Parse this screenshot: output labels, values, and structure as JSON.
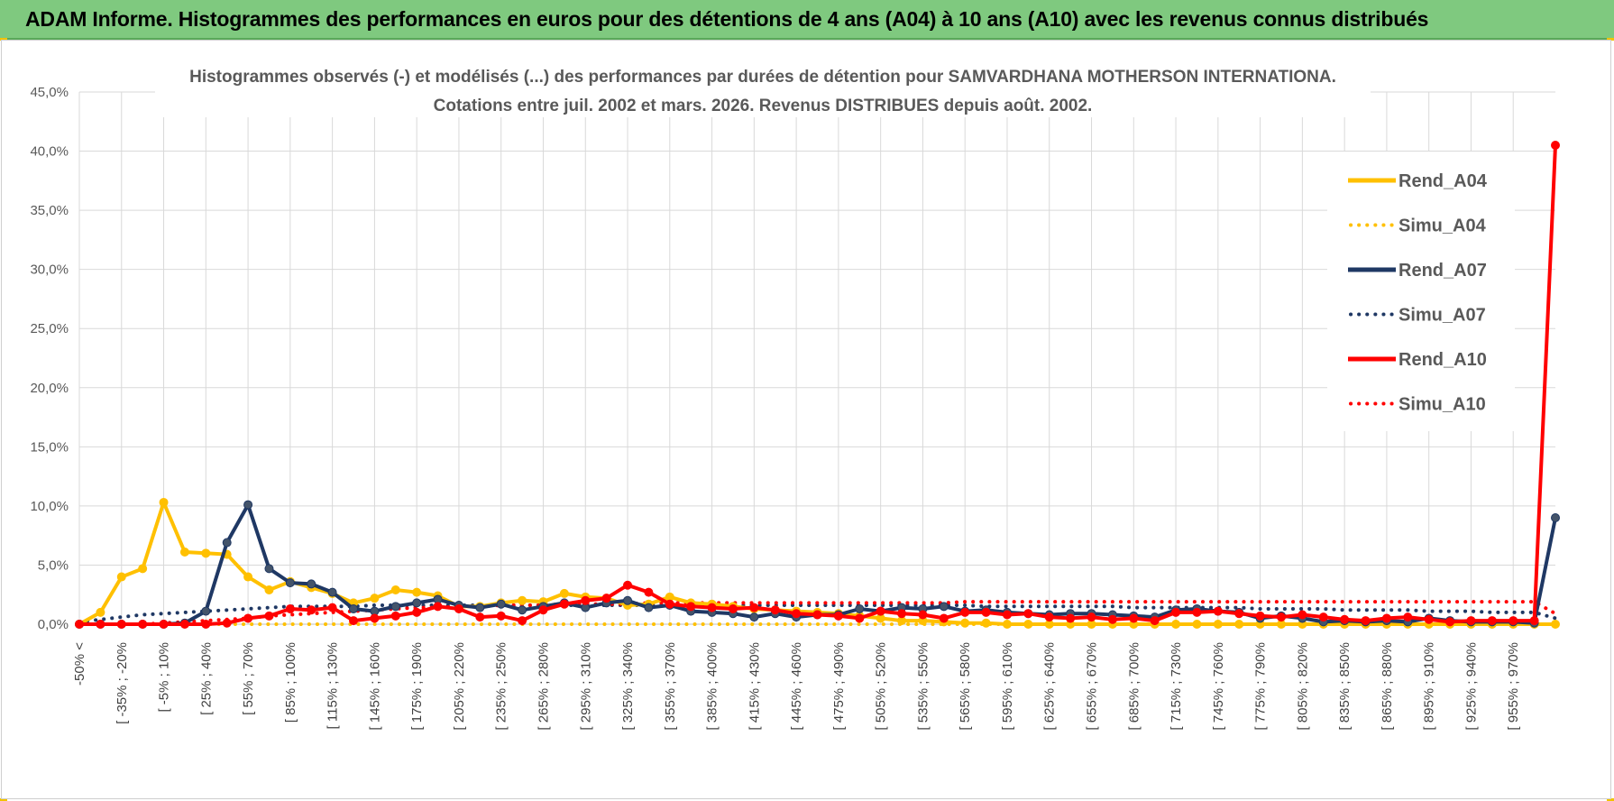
{
  "header": {
    "title": "ADAM Informe. Histogrammes des performances en euros pour des détentions de 4 ans (A04) à 10 ans (A10) avec les revenus connus distribués"
  },
  "chart_data": {
    "type": "line",
    "title_line1": "Histogrammes observés (-) et modélisés (...) des performances par durées de détention pour SAMVARDHANA MOTHERSON INTERNATIONA.",
    "title_line2": "Cotations entre juil. 2002 et mars. 2026. Revenus DISTRIBUES depuis août. 2002.",
    "ylim": [
      0,
      45
    ],
    "yticks": [
      "0,0%",
      "5,0%",
      "10,0%",
      "15,0%",
      "20,0%",
      "25,0%",
      "30,0%",
      "35,0%",
      "40,0%",
      "45,0%"
    ],
    "grid": true,
    "legend_position": "right",
    "x_labels": [
      "-50% <",
      "[ -35% ; -20%",
      "[ -5% ; 10%",
      "[ 25% ; 40%",
      "[ 55% ; 70%",
      "[ 85% ; 100%",
      "[ 115% ; 130%",
      "[ 145% ; 160%",
      "[ 175% ; 190%",
      "[ 205% ; 220%",
      "[ 235% ; 250%",
      "[ 265% ; 280%",
      "[ 295% ; 310%",
      "[ 325% ; 340%",
      "[ 355% ; 370%",
      "[ 385% ; 400%",
      "[ 415% ; 430%",
      "[ 445% ; 460%",
      "[ 475% ; 490%",
      "[ 505% ; 520%",
      "[ 535% ; 550%",
      "[ 565% ; 580%",
      "[ 595% ; 610%",
      "[ 625% ; 640%",
      "[ 655% ; 670%",
      "[ 685% ; 700%",
      "[ 715% ; 730%",
      "[ 745% ; 760%",
      "[ 775% ; 790%",
      "[ 805% ; 820%",
      "[ 835% ; 850%",
      "[ 865% ; 880%",
      "[ 895% ; 910%",
      "[ 925% ; 940%",
      "[ 955% ; 970%"
    ],
    "x_label_indices": [
      0,
      2,
      4,
      6,
      8,
      10,
      12,
      14,
      16,
      18,
      20,
      22,
      24,
      26,
      28,
      30,
      32,
      34,
      36,
      38,
      40,
      42,
      44,
      46,
      48,
      50,
      52,
      54,
      56,
      58,
      60,
      62,
      64,
      66,
      68
    ],
    "n_points": 71,
    "series": [
      {
        "name": "Rend_A04",
        "color": "#ffc000",
        "style": "solid",
        "values": [
          0.0,
          1.0,
          4.0,
          4.7,
          10.3,
          6.1,
          6.0,
          5.9,
          4.0,
          2.9,
          3.6,
          3.1,
          2.6,
          1.8,
          2.2,
          2.9,
          2.7,
          2.4,
          1.5,
          1.5,
          1.8,
          2.0,
          1.9,
          2.6,
          2.3,
          2.2,
          1.6,
          1.7,
          2.3,
          1.8,
          1.7,
          1.5,
          1.3,
          1.2,
          1.1,
          1.0,
          0.9,
          0.7,
          0.5,
          0.3,
          0.3,
          0.2,
          0.1,
          0.1,
          0.0,
          0.0,
          0.0,
          0.0,
          0.0,
          0.0,
          0.0,
          0.0,
          0.0,
          0.0,
          0.0,
          0.0,
          0.0,
          0.0,
          0.0,
          0.0,
          0.0,
          0.0,
          0.0,
          0.0,
          0.0,
          0.0,
          0.0,
          0.0,
          0.0,
          0.0,
          0.0
        ]
      },
      {
        "name": "Simu_A04",
        "color": "#ffc000",
        "style": "dotted",
        "values": [
          0.0,
          0.0,
          0.0,
          0.0,
          0.0,
          0.0,
          0.0,
          0.0,
          0.0,
          0.0,
          0.0,
          0.0,
          0.0,
          0.0,
          0.0,
          0.0,
          0.0,
          0.0,
          0.0,
          0.0,
          0.0,
          0.0,
          0.0,
          0.0,
          0.0,
          0.0,
          0.0,
          0.0,
          0.0,
          0.0,
          0.0,
          0.0,
          0.0,
          0.0,
          0.0,
          0.0,
          0.0,
          0.0,
          0.0,
          0.0,
          0.0,
          0.0,
          0.0,
          0.0,
          0.0,
          0.0,
          0.0,
          0.0,
          0.0,
          0.0,
          0.0,
          0.0,
          0.0,
          0.0,
          0.0,
          0.0,
          0.0,
          0.0,
          0.0,
          0.0,
          0.0,
          0.0,
          0.0,
          0.0,
          0.0,
          0.0,
          0.0,
          0.0,
          0.0,
          0.0,
          0.0
        ]
      },
      {
        "name": "Rend_A07",
        "color": "#1f3864",
        "style": "solid",
        "values": [
          0.0,
          0.0,
          0.0,
          0.0,
          0.0,
          0.1,
          1.1,
          6.9,
          10.1,
          4.7,
          3.5,
          3.4,
          2.7,
          1.3,
          1.1,
          1.5,
          1.8,
          2.1,
          1.6,
          1.4,
          1.7,
          1.2,
          1.5,
          1.8,
          1.4,
          1.8,
          2.0,
          1.4,
          1.6,
          1.1,
          1.0,
          0.9,
          0.6,
          0.9,
          0.6,
          0.8,
          0.8,
          1.3,
          1.1,
          1.4,
          1.3,
          1.5,
          1.1,
          1.2,
          1.0,
          0.9,
          0.8,
          0.9,
          0.9,
          0.8,
          0.7,
          0.6,
          1.2,
          1.3,
          1.1,
          1.0,
          0.5,
          0.7,
          0.5,
          0.2,
          0.3,
          0.2,
          0.3,
          0.2,
          0.5,
          0.3,
          0.2,
          0.2,
          0.2,
          0.1,
          9.0
        ]
      },
      {
        "name": "Simu_A07",
        "color": "#1f3864",
        "style": "dotted",
        "values": [
          0.2,
          0.4,
          0.6,
          0.8,
          0.9,
          1.0,
          1.1,
          1.2,
          1.3,
          1.4,
          1.5,
          1.5,
          1.5,
          1.5,
          1.6,
          1.6,
          1.6,
          1.6,
          1.6,
          1.6,
          1.6,
          1.6,
          1.6,
          1.6,
          1.6,
          1.6,
          1.6,
          1.6,
          1.6,
          1.6,
          1.6,
          1.6,
          1.6,
          1.6,
          1.6,
          1.6,
          1.6,
          1.6,
          1.6,
          1.6,
          1.6,
          1.6,
          1.6,
          1.5,
          1.5,
          1.5,
          1.5,
          1.5,
          1.5,
          1.5,
          1.4,
          1.4,
          1.4,
          1.4,
          1.4,
          1.4,
          1.3,
          1.3,
          1.3,
          1.3,
          1.2,
          1.2,
          1.2,
          1.2,
          1.1,
          1.1,
          1.1,
          1.0,
          1.0,
          1.0,
          0.5
        ]
      },
      {
        "name": "Rend_A10",
        "color": "#ff0000",
        "style": "solid",
        "values": [
          0.0,
          0.0,
          0.0,
          0.0,
          0.0,
          0.0,
          0.0,
          0.1,
          0.5,
          0.7,
          1.3,
          1.2,
          1.4,
          0.3,
          0.5,
          0.7,
          1.0,
          1.5,
          1.3,
          0.6,
          0.7,
          0.3,
          1.2,
          1.7,
          2.0,
          2.2,
          3.3,
          2.7,
          1.7,
          1.5,
          1.4,
          1.3,
          1.4,
          1.2,
          0.9,
          0.8,
          0.7,
          0.5,
          1.1,
          0.9,
          0.8,
          0.5,
          1.0,
          1.0,
          0.8,
          0.9,
          0.6,
          0.5,
          0.6,
          0.4,
          0.5,
          0.3,
          1.0,
          1.0,
          1.1,
          0.9,
          0.7,
          0.6,
          0.8,
          0.6,
          0.4,
          0.3,
          0.5,
          0.6,
          0.4,
          0.2,
          0.3,
          0.3,
          0.3,
          0.3,
          40.5
        ]
      },
      {
        "name": "Simu_A10",
        "color": "#ff0000",
        "style": "dotted",
        "values": [
          0.0,
          0.0,
          0.0,
          0.0,
          0.1,
          0.2,
          0.3,
          0.4,
          0.5,
          0.7,
          0.8,
          0.9,
          1.0,
          1.1,
          1.2,
          1.3,
          1.4,
          1.4,
          1.5,
          1.5,
          1.6,
          1.6,
          1.6,
          1.7,
          1.7,
          1.7,
          1.7,
          1.8,
          1.8,
          1.8,
          1.8,
          1.8,
          1.8,
          1.8,
          1.8,
          1.8,
          1.8,
          1.8,
          1.8,
          1.8,
          1.8,
          1.8,
          1.9,
          1.9,
          1.9,
          1.9,
          1.9,
          1.9,
          1.9,
          1.9,
          1.9,
          1.9,
          1.9,
          1.9,
          1.9,
          1.9,
          1.9,
          1.9,
          1.9,
          1.9,
          1.9,
          1.9,
          1.9,
          1.9,
          1.9,
          1.9,
          1.9,
          1.9,
          1.9,
          1.9,
          0.9
        ]
      }
    ]
  }
}
